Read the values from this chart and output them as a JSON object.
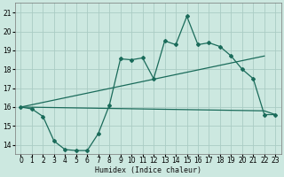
{
  "xlabel": "Humidex (Indice chaleur)",
  "bg_color": "#cce8e0",
  "line_color": "#1a6b5a",
  "grid_color": "#aaccc4",
  "xlim": [
    -0.5,
    23.5
  ],
  "ylim": [
    13.5,
    21.5
  ],
  "yticks": [
    14,
    15,
    16,
    17,
    18,
    19,
    20,
    21
  ],
  "xticks": [
    0,
    1,
    2,
    3,
    4,
    5,
    6,
    7,
    8,
    9,
    10,
    11,
    12,
    13,
    14,
    15,
    16,
    17,
    18,
    19,
    20,
    21,
    22,
    23
  ],
  "xtick_labels": [
    "0",
    "1",
    "2",
    "3",
    "4",
    "5",
    "6",
    "7",
    "8",
    "9",
    "10",
    "11",
    "12",
    "13",
    "14",
    "15",
    "16",
    "17",
    "18",
    "19",
    "20",
    "21",
    "22",
    "23"
  ],
  "line1_x": [
    0,
    1,
    2,
    3,
    4,
    5,
    6,
    7,
    8,
    9,
    10,
    11,
    12,
    13,
    14,
    15,
    16,
    17,
    18,
    19,
    20,
    21,
    22,
    23
  ],
  "line1_y": [
    16.0,
    15.9,
    15.5,
    14.2,
    13.75,
    13.7,
    13.7,
    14.6,
    16.1,
    18.55,
    18.5,
    18.6,
    17.5,
    19.5,
    19.3,
    20.8,
    19.3,
    19.4,
    19.2,
    18.7,
    18.0,
    17.5,
    15.6,
    15.6
  ],
  "line2_x": [
    0,
    22
  ],
  "line2_y": [
    16.0,
    18.7
  ],
  "line3_x": [
    0,
    22,
    23
  ],
  "line3_y": [
    16.0,
    15.8,
    15.6
  ],
  "xlabel_fontsize": 6,
  "tick_fontsize": 5.5
}
